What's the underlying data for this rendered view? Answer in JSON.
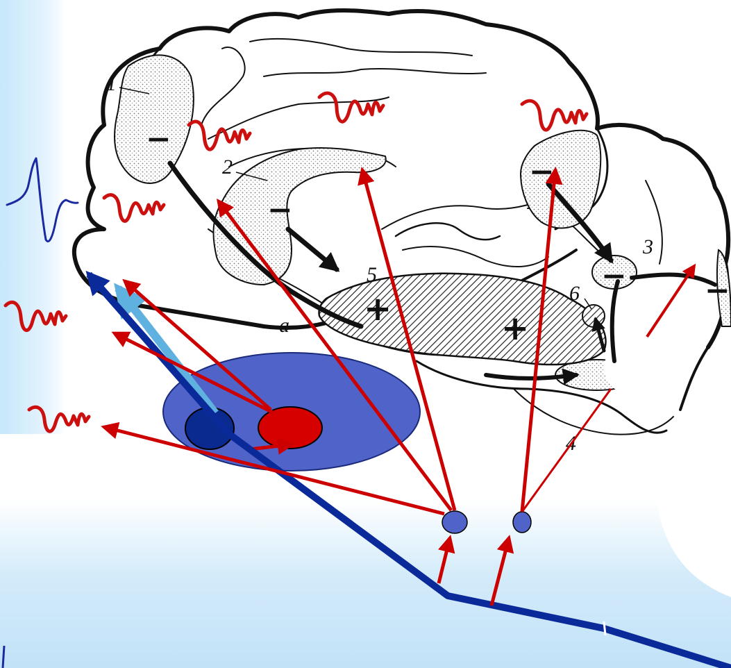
{
  "diagram": {
    "region_labels": [
      "1",
      "2",
      "3",
      "4",
      "5",
      "6"
    ],
    "letter_label": "a",
    "sign_minus": "−",
    "sign_plus": "+",
    "colors": {
      "background_gradient_blue": "#bfe3fb",
      "excitatory_arrow": "#cc0000",
      "pathway_blue": "#0b2a9a",
      "pathway_light_blue": "#5fb1e0",
      "thalamus_ellipse": "#4f63c8",
      "red_nucleus": "#d60000",
      "dark_blue_nucleus": "#0a2a90",
      "eeg_red": "#cc1010",
      "eeg_blue": "#1a2aa0",
      "line_art": "#111111"
    },
    "icons": [
      "eeg-wave-icon",
      "arrow-icon"
    ]
  }
}
